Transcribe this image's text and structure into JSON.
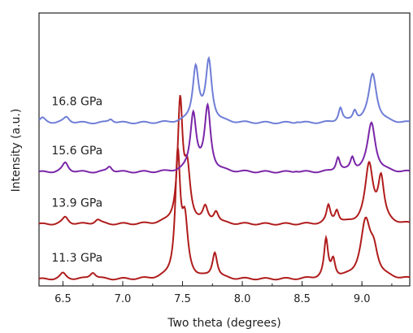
{
  "chart_data": {
    "type": "line",
    "xlabel": "Two theta (degrees)",
    "ylabel": "Intensity (a.u.)",
    "xlim": [
      6.3,
      9.4
    ],
    "ylim": [
      0,
      4.6
    ],
    "xticks": [
      6.5,
      7.0,
      7.5,
      8.0,
      8.5,
      9.0
    ],
    "xtick_labels": [
      "6.5",
      "7.0",
      "7.5",
      "8.0",
      "8.5",
      "9.0"
    ],
    "grid": false,
    "series": [
      {
        "name": "11.3 GPa",
        "color": "#b01c1c",
        "baseline": 0.0,
        "label_x": 6.35,
        "peaks": [
          [
            6.5,
            0.1,
            0.03
          ],
          [
            6.75,
            0.12,
            0.03
          ],
          [
            7.46,
            2.1,
            0.025
          ],
          [
            7.52,
            0.9,
            0.03
          ],
          [
            7.77,
            0.45,
            0.025
          ],
          [
            8.7,
            0.65,
            0.02
          ],
          [
            8.76,
            0.3,
            0.02
          ],
          [
            9.03,
            0.95,
            0.05
          ],
          [
            9.1,
            0.4,
            0.04
          ]
        ]
      },
      {
        "name": "13.9 GPa",
        "color": "#b01c1c",
        "baseline": 0.95,
        "label_x": 6.35,
        "peaks": [
          [
            6.52,
            0.12,
            0.03
          ],
          [
            6.79,
            0.08,
            0.03
          ],
          [
            7.48,
            2.05,
            0.025
          ],
          [
            7.54,
            0.85,
            0.03
          ],
          [
            7.69,
            0.25,
            0.025
          ],
          [
            7.78,
            0.2,
            0.025
          ],
          [
            8.72,
            0.3,
            0.02
          ],
          [
            8.79,
            0.22,
            0.02
          ],
          [
            9.06,
            1.0,
            0.04
          ],
          [
            9.16,
            0.75,
            0.03
          ]
        ]
      },
      {
        "name": "15.6 GPa",
        "color": "#7a26a8",
        "baseline": 1.85,
        "label_x": 6.35,
        "peaks": [
          [
            6.52,
            0.16,
            0.03
          ],
          [
            6.89,
            0.1,
            0.025
          ],
          [
            7.59,
            1.0,
            0.03
          ],
          [
            7.71,
            1.1,
            0.03
          ],
          [
            8.45,
            0.02,
            0.02
          ],
          [
            8.8,
            0.25,
            0.02
          ],
          [
            8.92,
            0.22,
            0.02
          ],
          [
            9.08,
            0.85,
            0.04
          ]
        ]
      },
      {
        "name": "16.8 GPa",
        "color": "#6f7ed6",
        "baseline": 2.7,
        "label_x": 6.35,
        "peaks": [
          [
            6.33,
            0.08,
            0.03
          ],
          [
            6.53,
            0.1,
            0.03
          ],
          [
            6.9,
            0.07,
            0.025
          ],
          [
            7.61,
            0.95,
            0.03
          ],
          [
            7.72,
            1.05,
            0.03
          ],
          [
            8.46,
            0.02,
            0.02
          ],
          [
            8.82,
            0.25,
            0.02
          ],
          [
            8.94,
            0.18,
            0.02
          ],
          [
            9.09,
            0.85,
            0.04
          ]
        ]
      }
    ]
  }
}
